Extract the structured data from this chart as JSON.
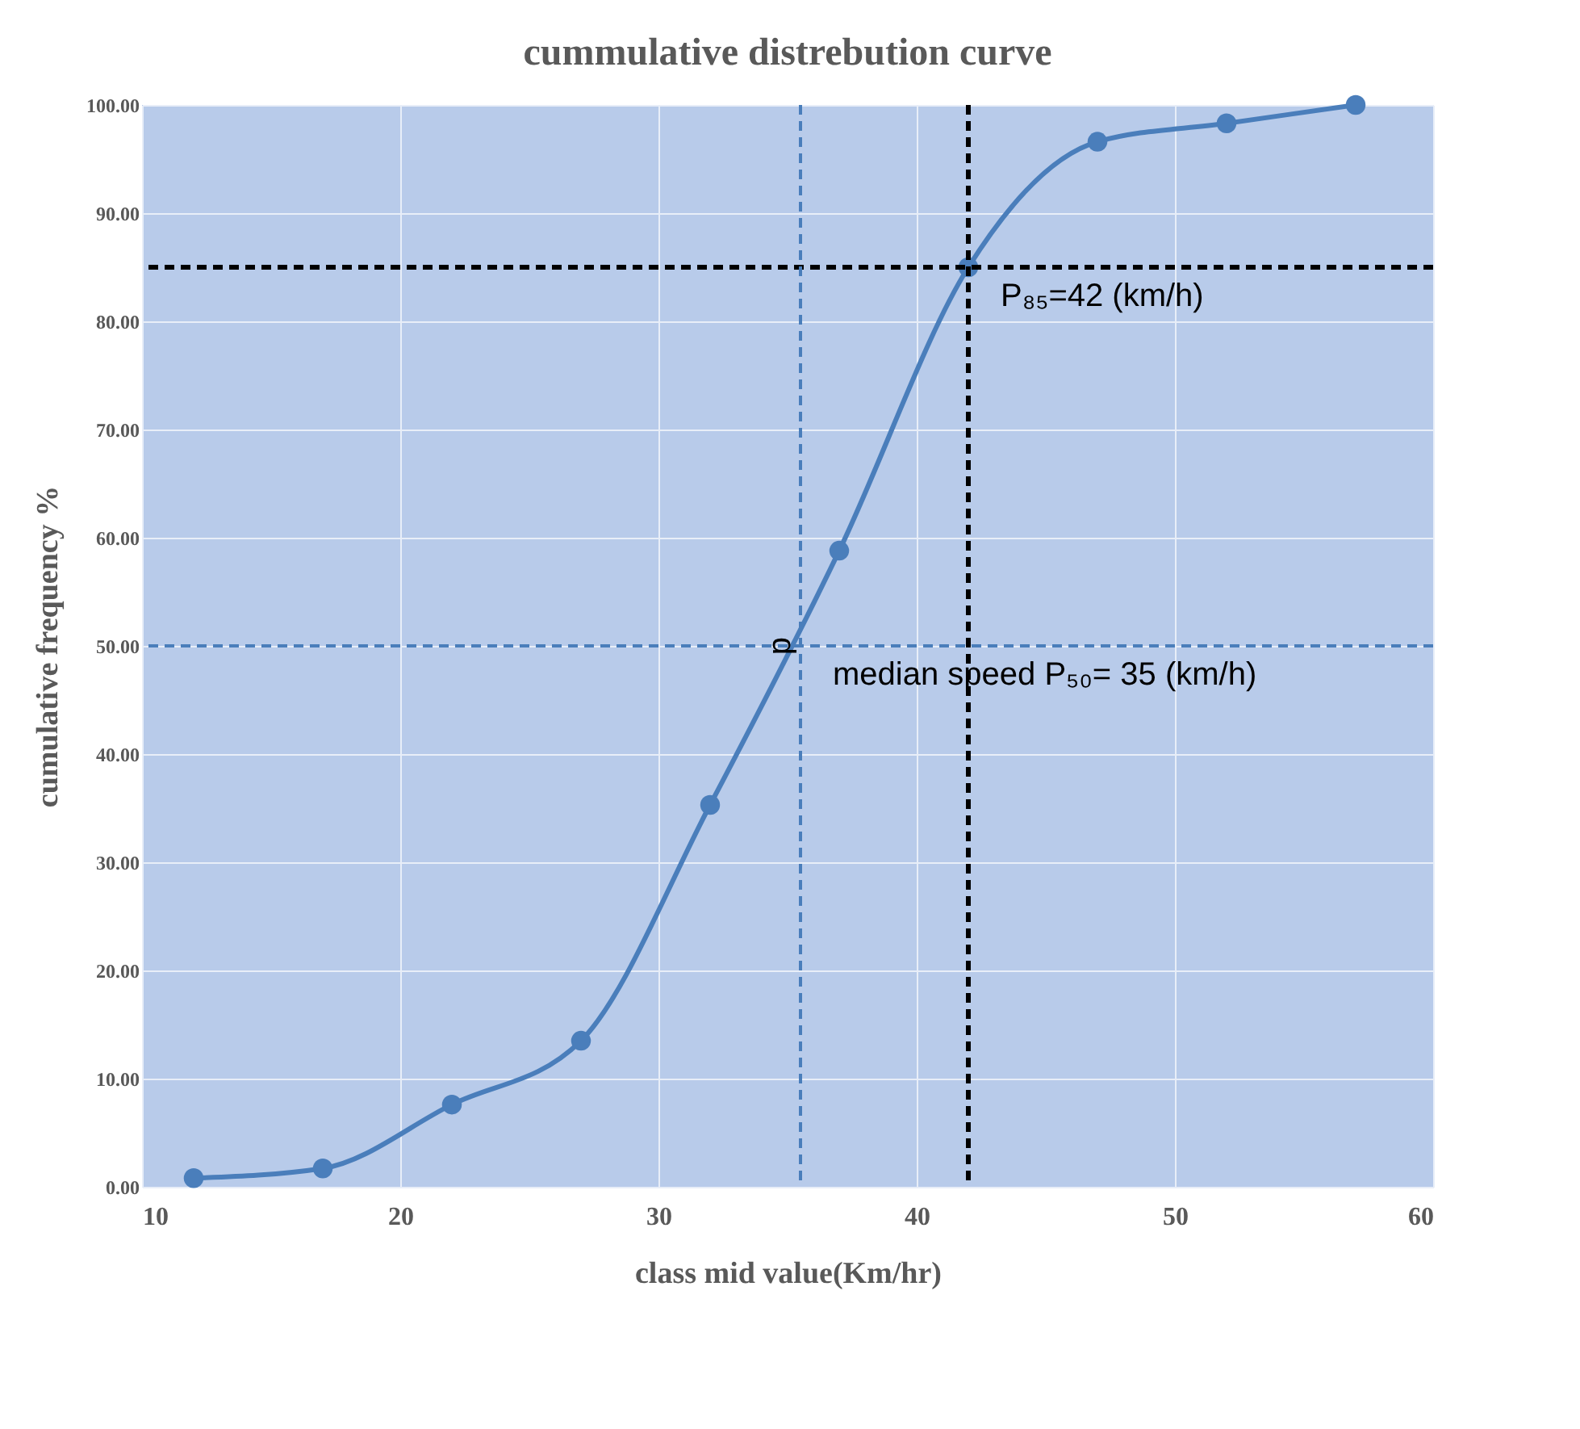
{
  "chart_data": {
    "type": "line",
    "title": "cummulative distrebution curve",
    "xlabel": "class mid value(Km/hr)",
    "ylabel": "cumulative frequency %",
    "x": [
      12,
      17,
      22,
      27,
      32,
      37,
      42,
      47,
      52,
      57
    ],
    "series": [
      {
        "color": "#4a7ebb",
        "values": [
          0.8,
          1.7,
          7.6,
          13.5,
          35.3,
          58.8,
          85,
          96.6,
          98.3,
          100
        ]
      }
    ],
    "marker": "circle",
    "line_style": "solid",
    "grid": true,
    "xlim": [
      10,
      60
    ],
    "xticks": [
      10,
      20,
      30,
      40,
      50,
      60
    ],
    "ylim": [
      0,
      100
    ],
    "yticks": [
      {
        "value": 0,
        "label": "0.00"
      },
      {
        "value": 10,
        "label": "10.00"
      },
      {
        "value": 20,
        "label": "20.00"
      },
      {
        "value": 30,
        "label": "30.00"
      },
      {
        "value": 40,
        "label": "40.00"
      },
      {
        "value": 50,
        "label": "50.00"
      },
      {
        "value": 60,
        "label": "60.00"
      },
      {
        "value": 70,
        "label": "70.00"
      },
      {
        "value": 80,
        "label": "80.00"
      },
      {
        "value": 90,
        "label": "90.00"
      },
      {
        "value": 100,
        "label": "100.00"
      }
    ],
    "ref_lines": [
      {
        "axis": "y",
        "value": 85,
        "color": "#000000",
        "line_style": "dashed"
      },
      {
        "axis": "x",
        "value": 42,
        "color": "#000000",
        "line_style": "dashed"
      },
      {
        "axis": "y",
        "value": 50,
        "color": "#4a7ebb",
        "line_style": "dashed"
      },
      {
        "axis": "x",
        "value": 35.5,
        "color": "#4a7ebb",
        "line_style": "dashed"
      }
    ],
    "annotations": [
      {
        "text": "P₈₅=42 (km/h)",
        "x": 42,
        "y": 85
      },
      {
        "text": "median speed P₅₀= 35 (km/h)",
        "x": 35.5,
        "y": 50
      },
      {
        "text": "d",
        "x": 34.8,
        "y": 50
      }
    ]
  }
}
